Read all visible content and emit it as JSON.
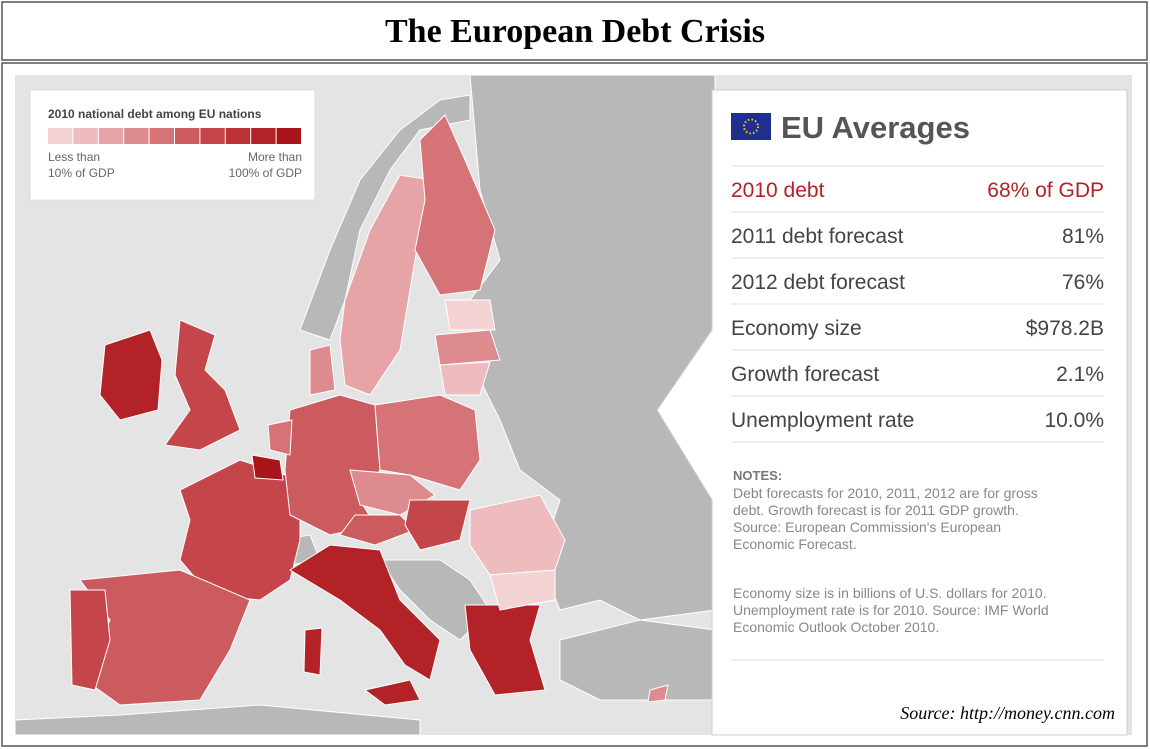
{
  "title": "The European Debt Crisis",
  "legend": {
    "title": "2010 national debt among EU nations",
    "colors": [
      "#f4d3d4",
      "#eebcbe",
      "#e6a4a7",
      "#de8b8f",
      "#d57377",
      "#cc5b60",
      "#c4464b",
      "#bb3337",
      "#b22226",
      "#a8151a"
    ],
    "low_label": [
      "Less than",
      "10% of GDP"
    ],
    "high_label": [
      "More than",
      "100% of GDP"
    ]
  },
  "panel": {
    "title": "EU Averages",
    "rows": [
      {
        "label": "2010 debt",
        "value": "68% of GDP"
      },
      {
        "label": "2011 debt forecast",
        "value": "81%"
      },
      {
        "label": "2012 debt forecast",
        "value": "76%"
      },
      {
        "label": "Economy size",
        "value": "$978.2B"
      },
      {
        "label": "Growth forecast",
        "value": "2.1%"
      },
      {
        "label": "Unemployment rate",
        "value": "10.0%"
      }
    ],
    "notes_heading": "NOTES:",
    "notes": [
      [
        "Debt forecasts for 2010, 2011, 2012 are for gross",
        "debt. Growth forecast is for 2011 GDP growth.",
        "Source: European Commission's European",
        "Economic Forecast."
      ],
      [
        "Economy size is in billions of U.S. dollars for 2010.",
        "Unemployment rate is for 2010. Source: IMF World",
        "Economic Outlook October 2010."
      ]
    ]
  },
  "source": "Source: http://money.cnn.com"
}
